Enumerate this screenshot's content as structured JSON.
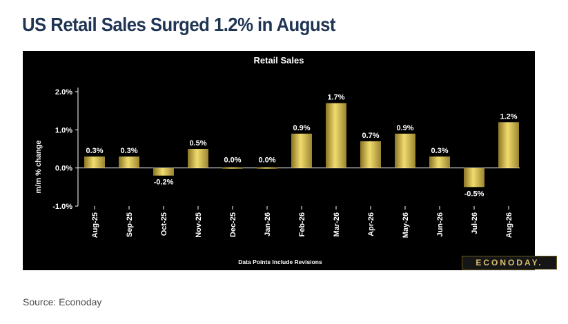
{
  "headline": "US Retail Sales Surged 1.2% in August",
  "source": "Source: Econoday",
  "brand": "ECONODAY.",
  "chart_data": {
    "type": "bar",
    "title": "Retail Sales",
    "ylabel": "m/m % change",
    "xlabel": "",
    "footnote": "Data Points Include Revisions",
    "ylim": [
      -1.0,
      2.0
    ],
    "yticks": [
      2.0,
      1.0,
      0.0,
      -1.0
    ],
    "ytick_labels": [
      "2.0%",
      "1.0%",
      "0.0%",
      "-1.0%"
    ],
    "grid": false,
    "categories": [
      "Aug-25",
      "Sep-25",
      "Oct-25",
      "Nov-25",
      "Dec-25",
      "Jan-26",
      "Feb-26",
      "Mar-26",
      "Apr-26",
      "May-26",
      "Jun-26",
      "Jul-26",
      "Aug-26"
    ],
    "values": [
      0.3,
      0.3,
      -0.2,
      0.5,
      0.0,
      0.0,
      0.9,
      1.7,
      0.7,
      0.9,
      0.3,
      -0.5,
      1.2
    ],
    "data_labels": [
      "0.3%",
      "0.3%",
      "-0.2%",
      "0.5%",
      "0.0%",
      "0.0%",
      "0.9%",
      "1.7%",
      "0.7%",
      "0.9%",
      "0.3%",
      "-0.5%",
      "1.2%"
    ],
    "colors": {
      "bar": "#d4bd48",
      "background": "#000000",
      "text": "#ffffff"
    }
  }
}
